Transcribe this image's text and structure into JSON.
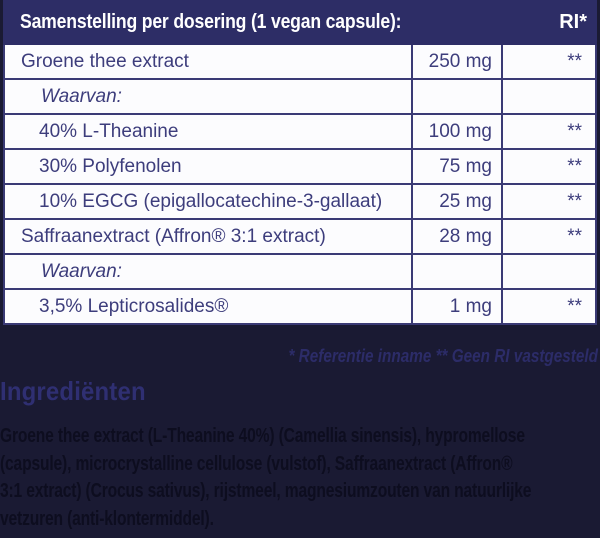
{
  "colors": {
    "page_background": "#1a1a33",
    "header_background": "#2d2d66",
    "table_border": "#3a3a75",
    "table_text": "#3d3d7c",
    "cell_background": "#fcfcfe",
    "header_text": "#ffffff",
    "footnote_text": "#2c2c68",
    "heading_text": "#2f2f72",
    "paragraph_text": "#0d0d1f"
  },
  "table": {
    "header": {
      "title": "Samenstelling per dosering (1 vegan capsule):",
      "ri_label": "RI*"
    },
    "rows": [
      {
        "label": "Groene thee extract",
        "amount": "250 mg",
        "ri": "**",
        "style": "main"
      },
      {
        "label": "Waarvan:",
        "amount": "",
        "ri": "",
        "style": "waarvan"
      },
      {
        "label": "40% L-Theanine",
        "amount": "100 mg",
        "ri": "**",
        "style": "sub"
      },
      {
        "label": "30% Polyfenolen",
        "amount": "75 mg",
        "ri": "**",
        "style": "sub"
      },
      {
        "label": "10%  EGCG (epigallocatechine-3-gallaat)",
        "amount": "25 mg",
        "ri": "**",
        "style": "sub"
      },
      {
        "label": "Saffraanextract (Affron® 3:1 extract)",
        "amount": "28 mg",
        "ri": "**",
        "style": "main"
      },
      {
        "label": "Waarvan:",
        "amount": "",
        "ri": "",
        "style": "waarvan"
      },
      {
        "label": "3,5% Lepticrosalides®",
        "amount": "1 mg",
        "ri": "**",
        "style": "sub"
      }
    ]
  },
  "footnote": "* Referentie inname  ** Geen RI vastgesteld",
  "ingredients": {
    "heading": "Ingrediënten",
    "lines": [
      "Groene thee extract (L-Theanine 40%) (Camellia sinensis), hypromellose",
      "(capsule), microcrystalline cellulose (vulstof), Saffraanextract (Affron®",
      "3:1 extract) (Crocus sativus), rijstmeel, magnesiumzouten van natuurlijke",
      "vetzuren (anti-klontermiddel)."
    ]
  }
}
